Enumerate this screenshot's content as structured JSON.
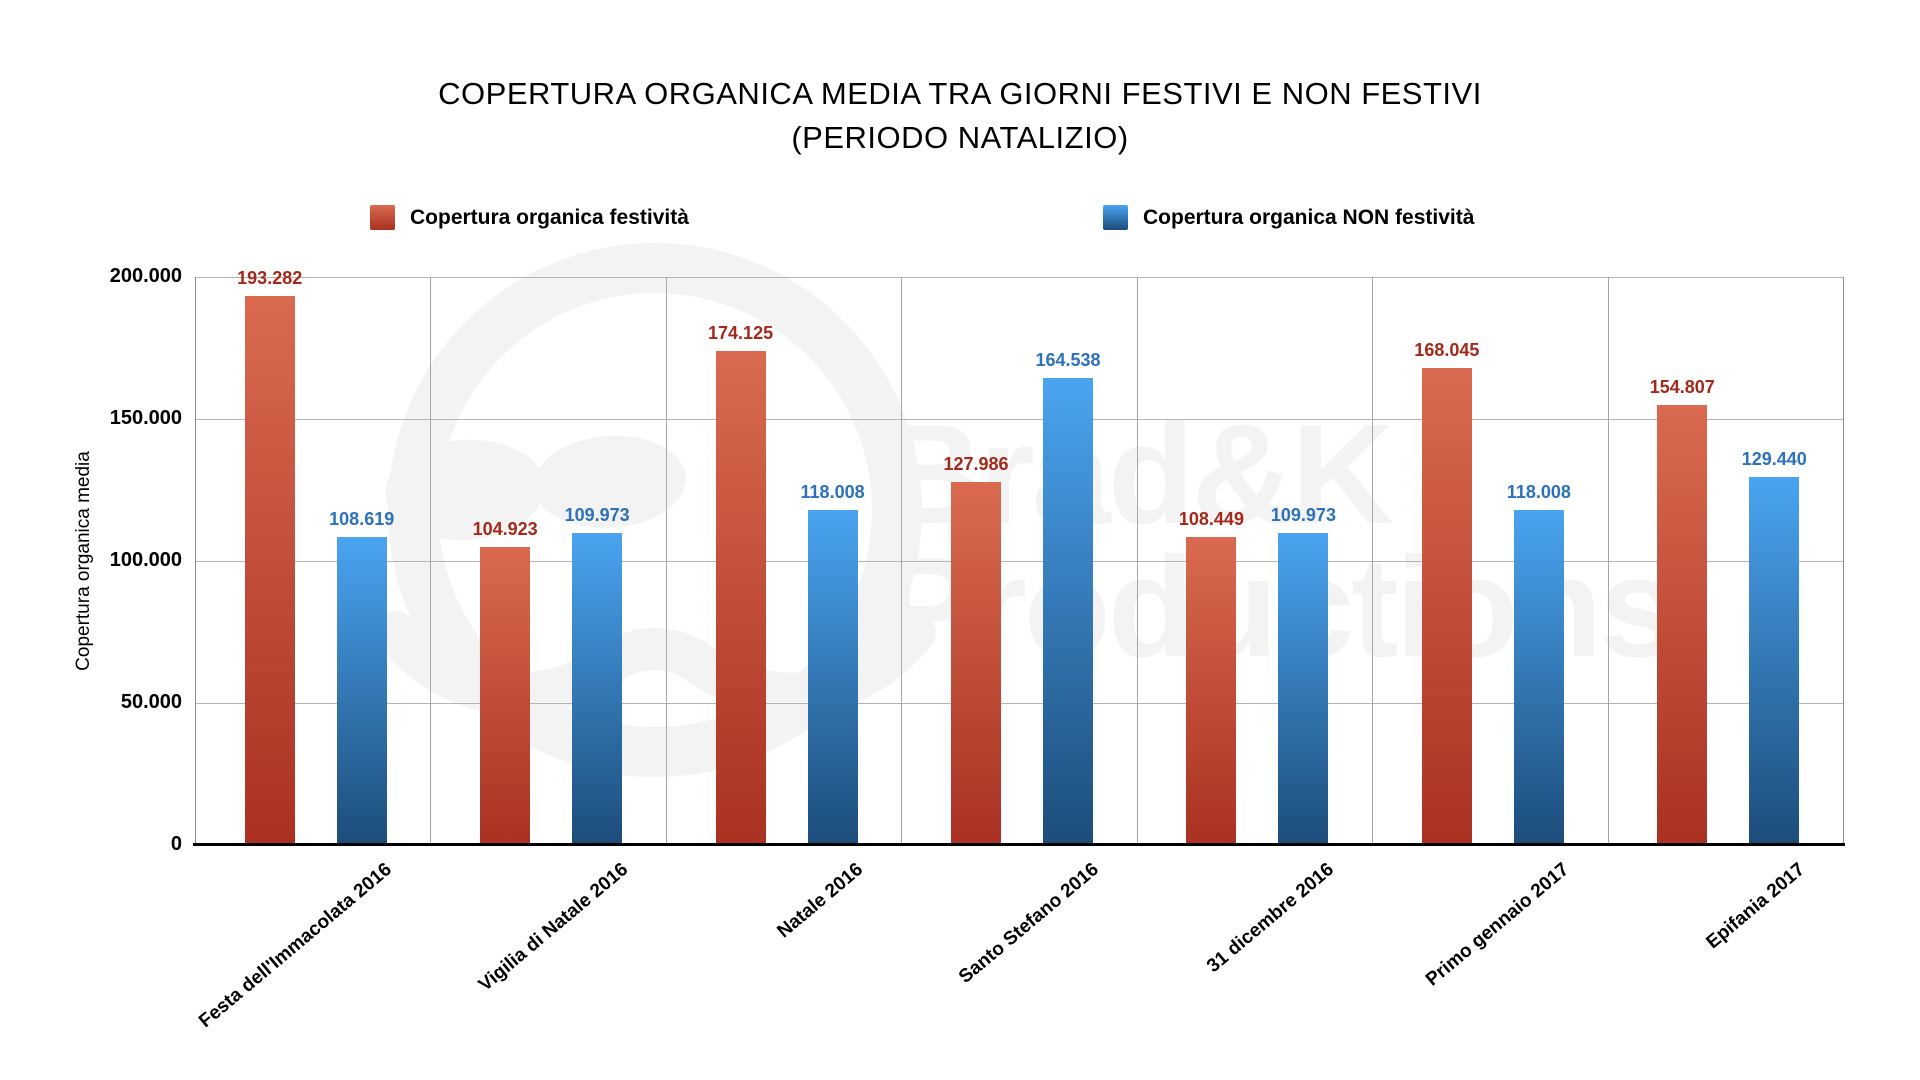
{
  "title": {
    "line1": "COPERTURA ORGANICA MEDIA TRA GIORNI FESTIVI E NON FESTIVI",
    "line2": "(PERIODO NATALIZIO)"
  },
  "legend": [
    {
      "label": "Copertura organica festività",
      "swatch_top": "#d96a50",
      "swatch_bottom": "#a93122"
    },
    {
      "label": "Copertura organica NON festività",
      "swatch_top": "#4aa4f0",
      "swatch_bottom": "#1c4c7a"
    }
  ],
  "y_axis": {
    "title": "Copertura organica media",
    "ticks": [
      "200.000",
      "150.000",
      "100.000",
      "50.000",
      "0"
    ]
  },
  "watermark": {
    "line1": "Brad&K",
    "line2": "Productions",
    "color": "#f3f3f3"
  },
  "chart_data": {
    "type": "bar",
    "title": "COPERTURA ORGANICA MEDIA TRA GIORNI FESTIVI E NON FESTIVI (PERIODO NATALIZIO)",
    "xlabel": "",
    "ylabel": "Copertura organica media",
    "ylim": [
      0,
      200000
    ],
    "ytick_interval": 50000,
    "grid": true,
    "legend_position": "top",
    "categories": [
      "Festa dell'Immacolata 2016",
      "Vigilia di Natale 2016",
      "Natale 2016",
      "Santo Stefano 2016",
      "31 dicembre 2016",
      "Primo gennaio 2017",
      "Epifania 2017"
    ],
    "series": [
      {
        "name": "Copertura organica festività",
        "values": [
          193282,
          104923,
          174125,
          127986,
          108449,
          168045,
          154807
        ],
        "labels": [
          "193.282",
          "104.923",
          "174.125",
          "127.986",
          "108.449",
          "168.045",
          "154.807"
        ],
        "bar_top": "#d96a50",
        "bar_bottom": "#a93122",
        "label_color": "#a5291b"
      },
      {
        "name": "Copertura organica NON festività",
        "values": [
          108619,
          109973,
          118008,
          164538,
          109973,
          118008,
          129440
        ],
        "labels": [
          "108.619",
          "109.973",
          "118.008",
          "164.538",
          "109.973",
          "118.008",
          "129.440"
        ],
        "bar_top": "#4aa4f0",
        "bar_bottom": "#1c4c7a",
        "label_color": "#2c71ba"
      }
    ]
  }
}
